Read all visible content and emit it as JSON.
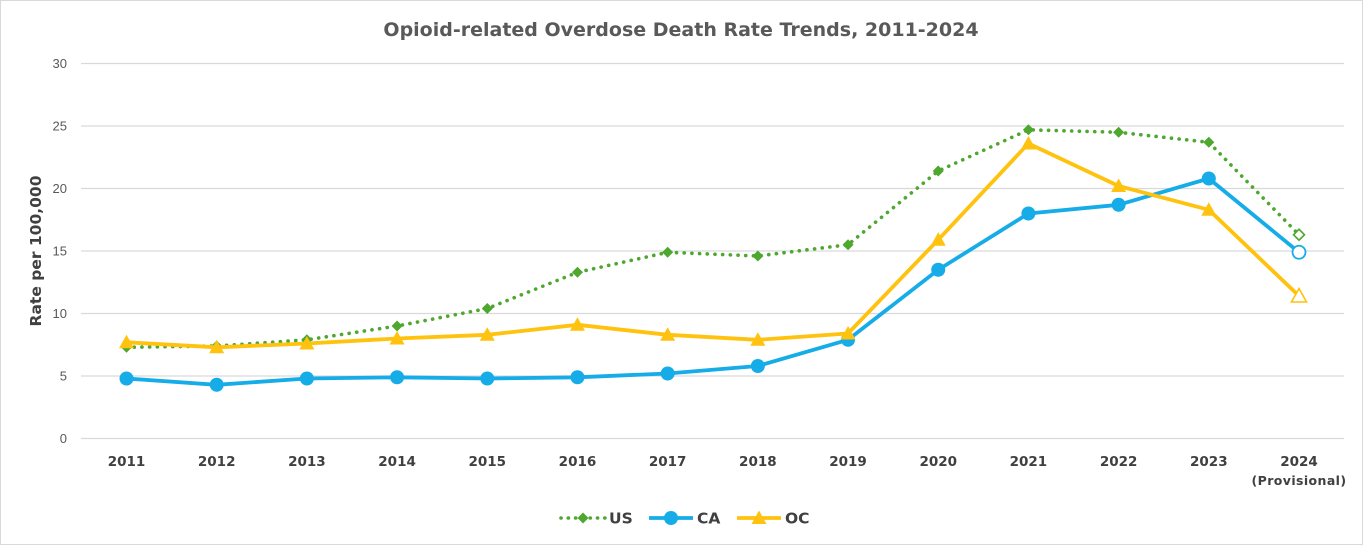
{
  "chart_data": {
    "type": "line",
    "title": "Opioid-related Overdose Death Rate Trends, 2011-2024",
    "xlabel": "",
    "ylabel": "Rate per 100,000",
    "ylim": [
      0,
      30
    ],
    "yticks": [
      0,
      5,
      10,
      15,
      20,
      25,
      30
    ],
    "grid": true,
    "legend_position": "bottom",
    "categories": [
      "2011",
      "2012",
      "2013",
      "2014",
      "2015",
      "2016",
      "2017",
      "2018",
      "2019",
      "2020",
      "2021",
      "2022",
      "2023",
      "2024"
    ],
    "category_sublabels": {
      "2024": "(Provisional)"
    },
    "provisional_category": "2024",
    "series": [
      {
        "name": "US",
        "color": "#4EA72E",
        "line_style": "dotted",
        "marker": "diamond",
        "values": [
          7.3,
          7.4,
          7.9,
          9.0,
          10.4,
          13.3,
          14.9,
          14.6,
          15.5,
          21.4,
          24.7,
          24.5,
          23.7,
          16.3
        ]
      },
      {
        "name": "CA",
        "color": "#16ACE8",
        "line_style": "solid",
        "marker": "circle",
        "values": [
          4.8,
          4.3,
          4.8,
          4.9,
          4.8,
          4.9,
          5.2,
          5.8,
          7.9,
          13.5,
          18.0,
          18.7,
          20.8,
          14.9
        ]
      },
      {
        "name": "OC",
        "color": "#FFC20E",
        "line_style": "solid",
        "marker": "triangle",
        "values": [
          7.7,
          7.3,
          7.6,
          8.0,
          8.3,
          9.1,
          8.3,
          7.9,
          8.4,
          15.9,
          23.6,
          20.2,
          18.3,
          11.4
        ]
      }
    ]
  }
}
